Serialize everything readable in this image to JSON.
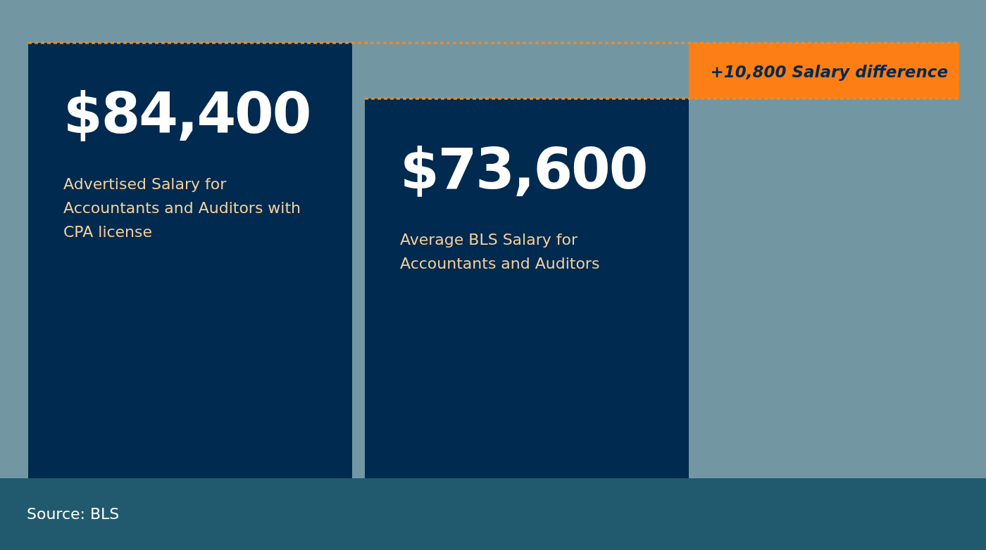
{
  "chart_data": {
    "type": "bar",
    "categories": [
      "Advertised Salary for Accountants and Auditors with CPA license",
      "Average BLS Salary for Accountants and Auditors"
    ],
    "values": [
      84400,
      73600
    ],
    "value_labels": [
      "$84,400",
      "$73,600"
    ],
    "color": "#002a4f",
    "ref_lines": [
      {
        "axis": "y",
        "value": 84400,
        "color": "#f7891f",
        "line_style": "dashed"
      },
      {
        "axis": "y",
        "value": 73600,
        "color": "#f7891f",
        "line_style": "dashed"
      }
    ],
    "bands": [
      {
        "axis": "y",
        "from": 73600,
        "to": 84400,
        "label": "+10,800 Salary difference",
        "color": "#fd7e14"
      }
    ],
    "annotations": [
      "Source: BLS"
    ]
  }
}
